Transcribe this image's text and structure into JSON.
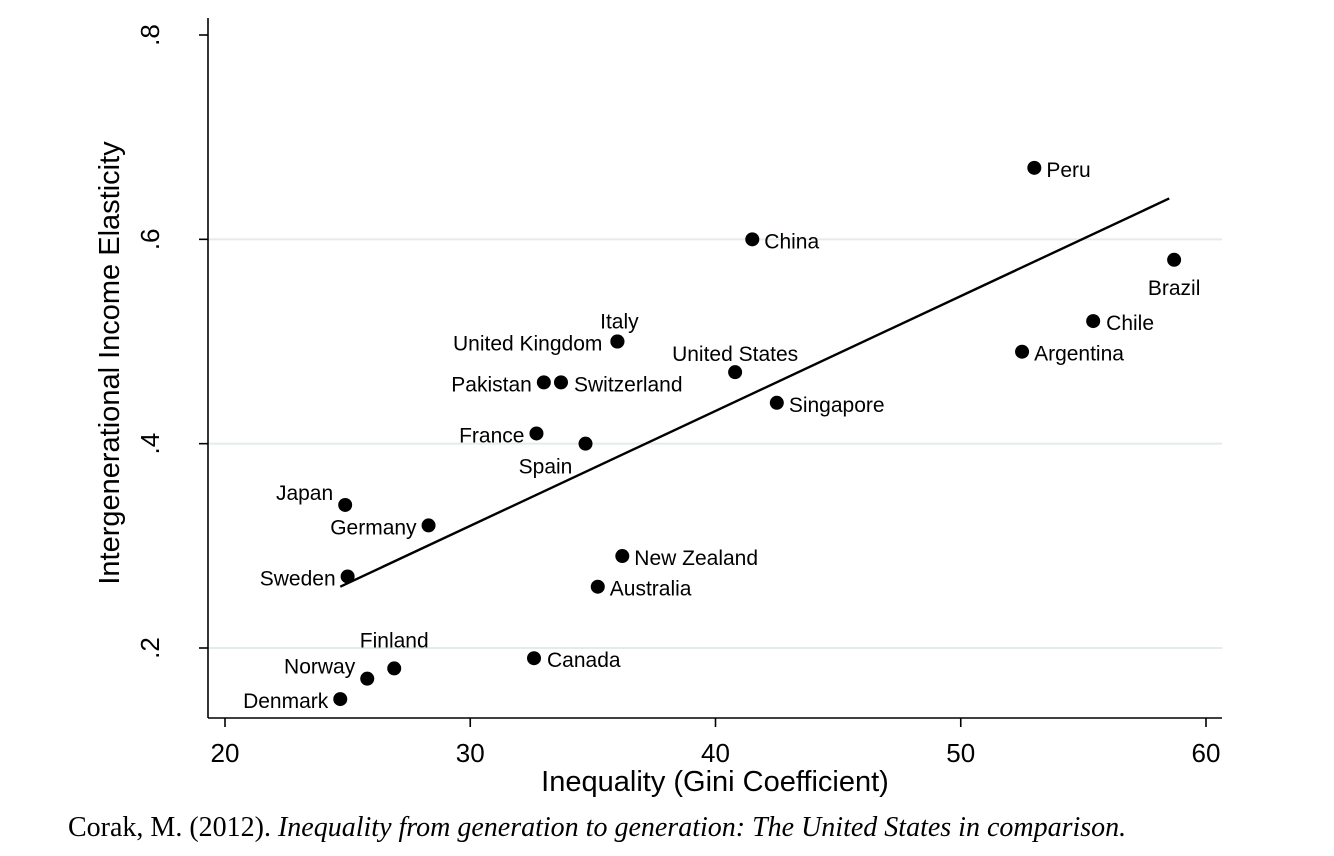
{
  "chart_data": {
    "type": "scatter",
    "xlabel": "Inequality (Gini Coefficient)",
    "ylabel": "Intergenerational Income Elasticity",
    "xlim": [
      20,
      60
    ],
    "ylim": [
      0.13,
      0.82
    ],
    "x_ticks": [
      20,
      30,
      40,
      50,
      60
    ],
    "x_tick_labels": [
      "20",
      "30",
      "40",
      "50",
      "60"
    ],
    "y_ticks": [
      0.2,
      0.4,
      0.6,
      0.8
    ],
    "y_tick_labels": [
      ".2",
      ".4",
      ".6",
      ".8"
    ],
    "grid": "horizontal",
    "points": [
      {
        "name": "Peru",
        "x": 53.0,
        "y": 0.67
      },
      {
        "name": "China",
        "x": 41.5,
        "y": 0.6
      },
      {
        "name": "Brazil",
        "x": 58.7,
        "y": 0.58
      },
      {
        "name": "Chile",
        "x": 55.4,
        "y": 0.52
      },
      {
        "name": "Argentina",
        "x": 52.5,
        "y": 0.49
      },
      {
        "name": "Italy",
        "x": 36.0,
        "y": 0.5
      },
      {
        "name": "United Kingdom",
        "x": 36.0,
        "y": 0.5
      },
      {
        "name": "United States",
        "x": 40.8,
        "y": 0.47
      },
      {
        "name": "Pakistan",
        "x": 33.0,
        "y": 0.46
      },
      {
        "name": "Switzerland",
        "x": 33.7,
        "y": 0.46
      },
      {
        "name": "Singapore",
        "x": 42.5,
        "y": 0.44
      },
      {
        "name": "France",
        "x": 32.7,
        "y": 0.41
      },
      {
        "name": "Spain",
        "x": 34.7,
        "y": 0.4
      },
      {
        "name": "Japan",
        "x": 24.9,
        "y": 0.34
      },
      {
        "name": "Germany",
        "x": 28.3,
        "y": 0.32
      },
      {
        "name": "New Zealand",
        "x": 36.2,
        "y": 0.29
      },
      {
        "name": "Sweden",
        "x": 25.0,
        "y": 0.27
      },
      {
        "name": "Australia",
        "x": 35.2,
        "y": 0.26
      },
      {
        "name": "Canada",
        "x": 32.6,
        "y": 0.19
      },
      {
        "name": "Finland",
        "x": 26.9,
        "y": 0.18
      },
      {
        "name": "Norway",
        "x": 25.8,
        "y": 0.17
      },
      {
        "name": "Denmark",
        "x": 24.7,
        "y": 0.15
      }
    ],
    "fit_line": {
      "x": [
        24.7,
        58.5
      ],
      "y": [
        0.26,
        0.64
      ]
    }
  },
  "caption": {
    "author": "Corak, M. (2012). ",
    "title": "Inequality from generation to generation: The United States in comparison."
  }
}
